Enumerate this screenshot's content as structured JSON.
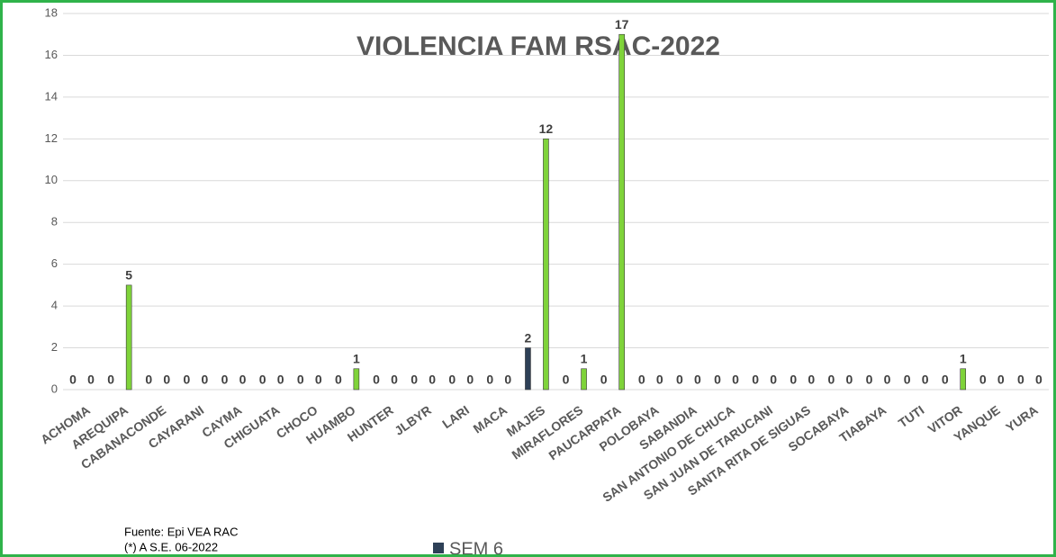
{
  "chart_data": {
    "type": "bar",
    "title": "VIOLENCIA FAM RSAC-2022",
    "notes": [
      "Fuente:  Epi VEA RAC",
      "(*) A S.E. 06-2022"
    ],
    "categories": [
      "ACHOMA",
      "AREQUIPA",
      "CABANACONDE",
      "CAYARANI",
      "CAYMA",
      "CHIGUATA",
      "CHOCO",
      "HUAMBO",
      "HUNTER",
      "JLBYR",
      "LARI",
      "MACA",
      "MAJES",
      "MIRAFLORES",
      "PAUCARPATA",
      "POLOBAYA",
      "SABANDIA",
      "SAN ANTONIO DE CHUCA",
      "SAN JUAN DE TARUCANI",
      "SANTA RITA DE SIGUAS",
      "SOCABAYA",
      "TIABAYA",
      "TUTI",
      "VITOR",
      "YANQUE",
      "YURA"
    ],
    "series": [
      {
        "name": "SEM 6",
        "color": "#2e4057",
        "values": [
          0,
          0,
          0,
          0,
          0,
          0,
          0,
          0,
          0,
          0,
          0,
          0,
          2,
          0,
          0,
          0,
          0,
          0,
          0,
          0,
          0,
          0,
          0,
          0,
          0,
          0
        ]
      },
      {
        "color": "#7fd33a",
        "values": [
          0,
          5,
          0,
          0,
          0,
          0,
          0,
          1,
          0,
          0,
          0,
          0,
          12,
          1,
          17,
          0,
          0,
          0,
          0,
          0,
          0,
          0,
          0,
          1,
          0,
          0
        ]
      }
    ],
    "ylim": [
      0,
      18
    ],
    "yticks": [
      0,
      2,
      4,
      6,
      8,
      10,
      12,
      14,
      16,
      18
    ],
    "grid": true
  }
}
